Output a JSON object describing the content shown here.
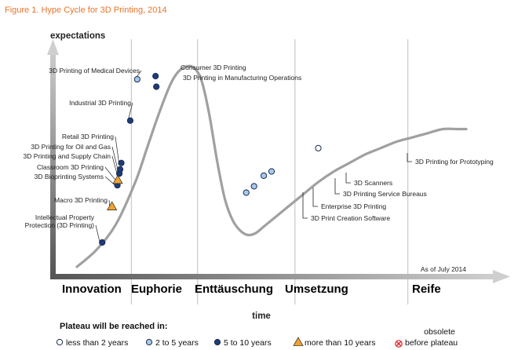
{
  "figure_title": "Figure 1. Hype Cycle for 3D Printing, 2014",
  "chart_data": {
    "type": "line",
    "title": "Figure 1. Hype Cycle for 3D Printing, 2014",
    "ylabel": "expectations",
    "xlabel": "time",
    "date_note": "As of July 2014",
    "grid": false,
    "xlim": [
      0,
      100
    ],
    "ylim": [
      0,
      100
    ],
    "curve": {
      "x": [
        0,
        5,
        10,
        15,
        18,
        21,
        24,
        26,
        28,
        30,
        32,
        34,
        36,
        38,
        40,
        42,
        44,
        46,
        48,
        50,
        54,
        58,
        62,
        66,
        70,
        74,
        78,
        82,
        86,
        90,
        94,
        98,
        100
      ],
      "y": [
        0,
        8,
        20,
        40,
        56,
        72,
        86,
        92,
        94.5,
        94,
        88,
        72,
        50,
        32,
        22,
        17,
        15,
        16,
        19,
        22,
        28,
        34,
        40,
        45,
        49,
        53,
        56,
        59,
        61,
        63,
        65,
        65,
        65
      ]
    },
    "phases": [
      {
        "label": "Innovation",
        "x_end": 14
      },
      {
        "label": "Euphorie",
        "x_end": 31
      },
      {
        "label": "Enttäuschung",
        "x_end": 56
      },
      {
        "label": "Umsetzung",
        "x_end": 85
      },
      {
        "label": "Reife",
        "x_end": 100
      }
    ],
    "technologies": [
      {
        "name": "Intellectual Property\nProtection (3D Printing)",
        "x": 6.5,
        "y": 11.5,
        "plateau": "5 to 10 years",
        "side": "left"
      },
      {
        "name": "Macro 3D Printing",
        "x": 9.0,
        "y": 28.5,
        "plateau": "more than 10 years",
        "side": "left"
      },
      {
        "name": "3D Bioprinting Systems",
        "x": 10.4,
        "y": 38.5,
        "plateau": "5 to 10 years",
        "side": "left"
      },
      {
        "name": "Classroom 3D Printing",
        "x": 10.5,
        "y": 41.0,
        "plateau": "more than 10 years",
        "side": "left"
      },
      {
        "name": "3D Printing and Supply Chain",
        "x": 10.9,
        "y": 44.0,
        "plateau": "5 to 10 years",
        "side": "left"
      },
      {
        "name": "3D Printing for Oil and Gas",
        "x": 11.1,
        "y": 46.0,
        "plateau": "5 to 10 years",
        "side": "left"
      },
      {
        "name": "Retail 3D Printing",
        "x": 11.4,
        "y": 49.0,
        "plateau": "5 to 10 years",
        "side": "left"
      },
      {
        "name": "Industrial 3D Printing",
        "x": 13.7,
        "y": 69.0,
        "plateau": "5 to 10 years",
        "side": "left"
      },
      {
        "name": "3D Printing of Medical Devices",
        "x": 15.5,
        "y": 88.5,
        "plateau": "2 to 5 years",
        "side": "left"
      },
      {
        "name": "Consumer 3D Printing",
        "x": 20.2,
        "y": 90.0,
        "plateau": "5 to 10 years",
        "side": "right"
      },
      {
        "name": "3D Printing in Manufacturing Operations",
        "x": 20.4,
        "y": 85.0,
        "plateau": "5 to 10 years",
        "side": "right"
      },
      {
        "name": "3D Print Creation Software",
        "x": 43.5,
        "y": 35.0,
        "plateau": "2 to 5 years",
        "side": "below"
      },
      {
        "name": "Enterprise 3D Printing",
        "x": 45.5,
        "y": 38.0,
        "plateau": "2 to 5 years",
        "side": "below"
      },
      {
        "name": "3D Printing Service Bureaus",
        "x": 48.0,
        "y": 43.0,
        "plateau": "2 to 5 years",
        "side": "below"
      },
      {
        "name": "3D Scanners",
        "x": 50.0,
        "y": 45.0,
        "plateau": "2 to 5 years",
        "side": "below"
      },
      {
        "name": "3D Printing for Prototyping",
        "x": 62.0,
        "y": 56.0,
        "plateau": "less than 2 years",
        "side": "below"
      }
    ]
  },
  "legend": {
    "title": "Plateau will be reached in:",
    "items": [
      {
        "label": "less than 2 years",
        "marker": "open-circle",
        "color": "#ffffff"
      },
      {
        "label": "2 to 5 years",
        "marker": "light-circle",
        "color": "#a9c9e9"
      },
      {
        "label": "5 to 10 years",
        "marker": "dark-circle",
        "color": "#1f3b7a"
      },
      {
        "label": "more than 10 years",
        "marker": "triangle",
        "color": "#f2a22c"
      },
      {
        "label": "obsolete\nbefore plateau",
        "marker": "x-circle",
        "color": "#e02020"
      }
    ]
  },
  "colors": {
    "accent": "#e8742a",
    "curve": "#a0a0a0",
    "axis": "#707070",
    "divider": "#cccccc",
    "dark_marker": "#1f3b7a",
    "light_marker": "#a9c9e9",
    "triangle_marker": "#f2a22c",
    "obsolete": "#e02020"
  }
}
